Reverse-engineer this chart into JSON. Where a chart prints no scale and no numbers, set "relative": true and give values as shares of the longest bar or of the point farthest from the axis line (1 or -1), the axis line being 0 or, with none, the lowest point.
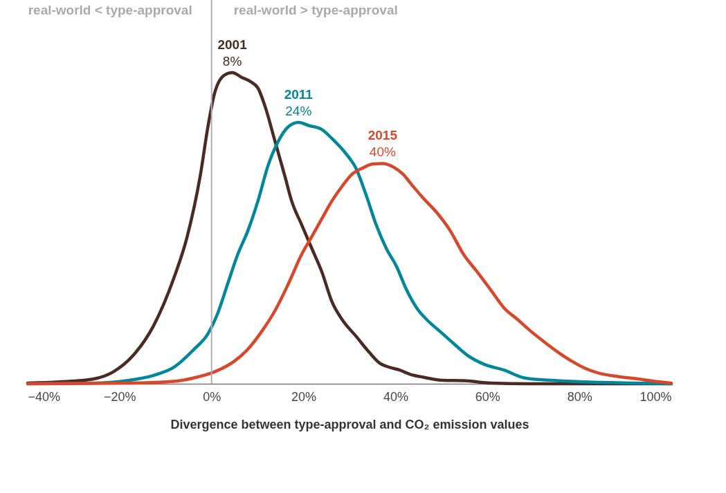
{
  "chart_data": {
    "type": "line",
    "relative": true,
    "xlabel": "Divergence between type-approval and CO₂ emission values",
    "xlim": [
      -40,
      100
    ],
    "xticks": [
      {
        "value": -40,
        "label": "−40%"
      },
      {
        "value": -20,
        "label": "−20%"
      },
      {
        "value": 0,
        "label": "0%"
      },
      {
        "value": 20,
        "label": "20%"
      },
      {
        "value": 40,
        "label": "40%"
      },
      {
        "value": 60,
        "label": "60%"
      },
      {
        "value": 80,
        "label": "80%"
      },
      {
        "value": 100,
        "label": "100%"
      }
    ],
    "series": [
      {
        "name": "2001",
        "color": "#4a2a22",
        "x": [
          -40.0,
          -33.1,
          -25.8,
          -21.4,
          -17.0,
          -12.6,
          -8.2,
          -5.3,
          -2.3,
          -0.9,
          0.6,
          2.8,
          4.5,
          6.5,
          8.7,
          10.1,
          11.6,
          13.8,
          16.0,
          17.4,
          19.6,
          21.8,
          24.0,
          26.2,
          28.4,
          31.4,
          34.3,
          36.5,
          38.7,
          40.9,
          43.1,
          46.0,
          50.4,
          54.8,
          60.7,
          69.5,
          100
        ],
        "values": [
          0.002,
          0.006,
          0.015,
          0.038,
          0.092,
          0.187,
          0.34,
          0.473,
          0.683,
          0.817,
          0.931,
          0.992,
          1,
          0.985,
          0.969,
          0.95,
          0.893,
          0.779,
          0.664,
          0.588,
          0.511,
          0.435,
          0.359,
          0.263,
          0.206,
          0.153,
          0.101,
          0.067,
          0.053,
          0.044,
          0.031,
          0.021,
          0.011,
          0.01,
          0.002,
          0,
          0
        ]
      },
      {
        "name": "2011",
        "color": "#00889a",
        "x": [
          -40.0,
          -25.8,
          -18.5,
          -12.6,
          -8.2,
          -3.8,
          -0.9,
          1.3,
          3.5,
          5.7,
          7.9,
          10.1,
          12.3,
          14.5,
          16.7,
          18.9,
          21.1,
          24.0,
          26.2,
          29.2,
          31.4,
          33.6,
          35.8,
          38.0,
          40.2,
          42.4,
          44.6,
          46.8,
          49.7,
          52.6,
          55.6,
          59.2,
          63.6,
          68.0,
          73.9,
          81.2,
          91.5,
          100
        ],
        "values": [
          0,
          0.002,
          0.01,
          0.027,
          0.053,
          0.111,
          0.158,
          0.225,
          0.321,
          0.416,
          0.492,
          0.588,
          0.702,
          0.779,
          0.826,
          0.84,
          0.83,
          0.817,
          0.788,
          0.74,
          0.693,
          0.607,
          0.511,
          0.435,
          0.378,
          0.302,
          0.244,
          0.206,
          0.168,
          0.13,
          0.092,
          0.063,
          0.044,
          0.019,
          0.011,
          0.006,
          0.002,
          0
        ]
      },
      {
        "name": "2015",
        "color": "#d9472b",
        "x": [
          -40.0,
          -18.5,
          -8.2,
          -3.8,
          0.6,
          5.0,
          7.9,
          10.9,
          13.8,
          16.7,
          19.6,
          21.8,
          24.0,
          26.2,
          28.4,
          30.6,
          32.8,
          35.0,
          37.2,
          39.4,
          41.6,
          43.8,
          46.0,
          49.0,
          51.9,
          54.8,
          57.8,
          60.7,
          63.6,
          66.6,
          69.5,
          72.4,
          75.4,
          78.3,
          81.2,
          84.2,
          88.6,
          93.0,
          97.4,
          100
        ],
        "values": [
          0,
          0.002,
          0.008,
          0.019,
          0.038,
          0.073,
          0.111,
          0.168,
          0.235,
          0.321,
          0.416,
          0.473,
          0.531,
          0.588,
          0.635,
          0.674,
          0.693,
          0.706,
          0.708,
          0.698,
          0.674,
          0.635,
          0.597,
          0.55,
          0.492,
          0.416,
          0.359,
          0.302,
          0.244,
          0.206,
          0.168,
          0.134,
          0.101,
          0.073,
          0.05,
          0.034,
          0.023,
          0.015,
          0.006,
          0.002
        ]
      }
    ],
    "ref_lines": [
      {
        "axis": "x",
        "value": 0,
        "color": "#b0b0b0"
      }
    ],
    "annotations": [
      "real-world < type-approval",
      "real-world > type-approval",
      {
        "text": "8%",
        "x": 4.5,
        "y": 1
      },
      {
        "text": "24%",
        "x": 18.9,
        "y": 0.84
      },
      {
        "text": "40%",
        "x": 37.2,
        "y": 0.708
      }
    ]
  }
}
